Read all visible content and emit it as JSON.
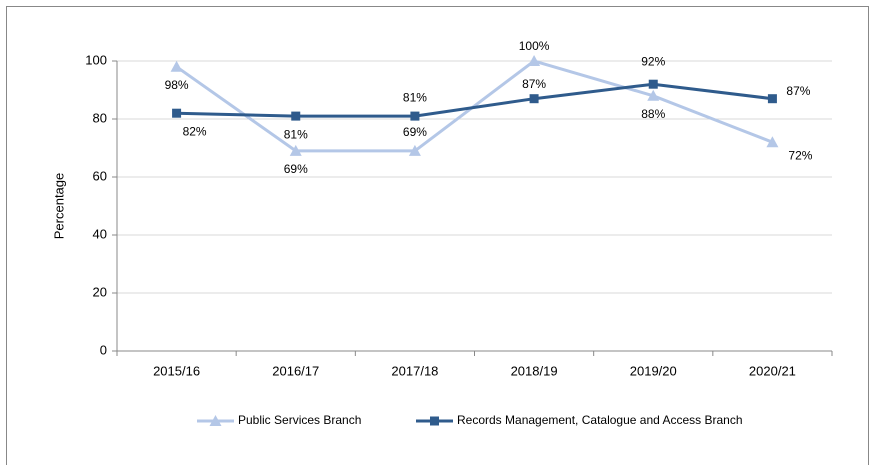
{
  "chart_data": {
    "type": "line",
    "y_label": "Percentage",
    "categories": [
      "2015/16",
      "2016/17",
      "2017/18",
      "2018/19",
      "2019/20",
      "2020/21"
    ],
    "series": [
      {
        "name": "Public Services Branch",
        "color": "#b4c7e7",
        "marker": "triangle",
        "values": [
          98,
          69,
          69,
          100,
          88,
          72
        ],
        "value_labels": [
          "98%",
          "69%",
          "69%",
          "100%",
          "88%",
          "72%"
        ]
      },
      {
        "name": "Records Management, Catalogue and Access Branch",
        "color": "#2f5b8c",
        "marker": "square",
        "values": [
          82,
          81,
          81,
          87,
          92,
          87
        ],
        "value_labels": [
          "82%",
          "81%",
          "81%",
          "87%",
          "92%",
          "87%"
        ]
      }
    ],
    "ylim": [
      0,
      100
    ],
    "yticks": [
      0,
      20,
      40,
      60,
      80,
      100
    ],
    "grid": true,
    "legend": "bottom"
  }
}
